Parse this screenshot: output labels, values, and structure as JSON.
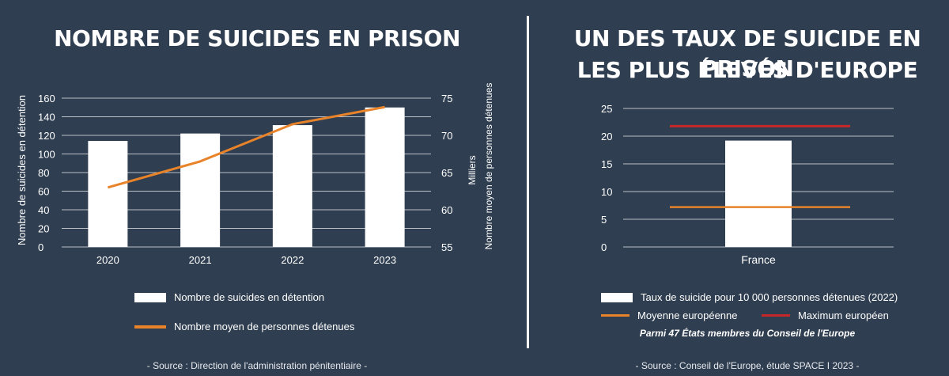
{
  "left": {
    "title": "NOMBRE DE SUICIDES EN PRISON",
    "legend": {
      "bars": "Nombre de suicides en détention",
      "line": "Nombre moyen de personnes détenues"
    },
    "source": "- Source : Direction de l'administration pénitentiaire -"
  },
  "right": {
    "title_line1": "UN DES TAUX DE SUICIDE EN PRISON",
    "title_line2": "LES PLUS ÉLEVÉS D'EUROPE",
    "legend": {
      "bars": "Taux de suicide pour 10 000 personnes détenues (2022)",
      "avg": "Moyenne européenne",
      "max": "Maximum européen"
    },
    "note": "Parmi 47 États membres du Conseil de l'Europe",
    "source": "- Source : Conseil de l'Europe, étude SPACE I 2023 -"
  },
  "colors": {
    "background": "#2f3e50",
    "bar": "#ffffff",
    "line": "#e8832a",
    "max": "#c62828",
    "grid": "#ffffff"
  },
  "chart_data": [
    {
      "type": "bar",
      "categories": [
        "2020",
        "2021",
        "2022",
        "2023"
      ],
      "series": [
        {
          "name": "Nombre de suicides en détention",
          "axis": "left",
          "type": "bar",
          "values": [
            114,
            122,
            131,
            150
          ]
        },
        {
          "name": "Nombre moyen de personnes détenues",
          "axis": "right",
          "type": "line",
          "values": [
            63,
            66.5,
            71.5,
            73.8
          ]
        }
      ],
      "ylabel": "Nombre de suicides en détention",
      "ylabel_right": "Nombre moyen de personnes détenues",
      "ylabel_right_unit": "Milliers",
      "ylim": [
        0,
        160
      ],
      "yticks": [
        0,
        20,
        40,
        60,
        80,
        100,
        120,
        140,
        160
      ],
      "ylim_right": [
        55,
        75
      ],
      "yticks_right": [
        55,
        60,
        65,
        70,
        75
      ],
      "grid": true,
      "legend_position": "bottom"
    },
    {
      "type": "bar",
      "categories": [
        "France"
      ],
      "values": [
        19.2
      ],
      "reference_lines": [
        {
          "name": "Moyenne européenne",
          "value": 7.2
        },
        {
          "name": "Maximum européen",
          "value": 21.8
        }
      ],
      "ylim": [
        0,
        25
      ],
      "yticks": [
        0,
        5,
        10,
        15,
        20,
        25
      ],
      "grid": true,
      "legend_position": "bottom"
    }
  ]
}
